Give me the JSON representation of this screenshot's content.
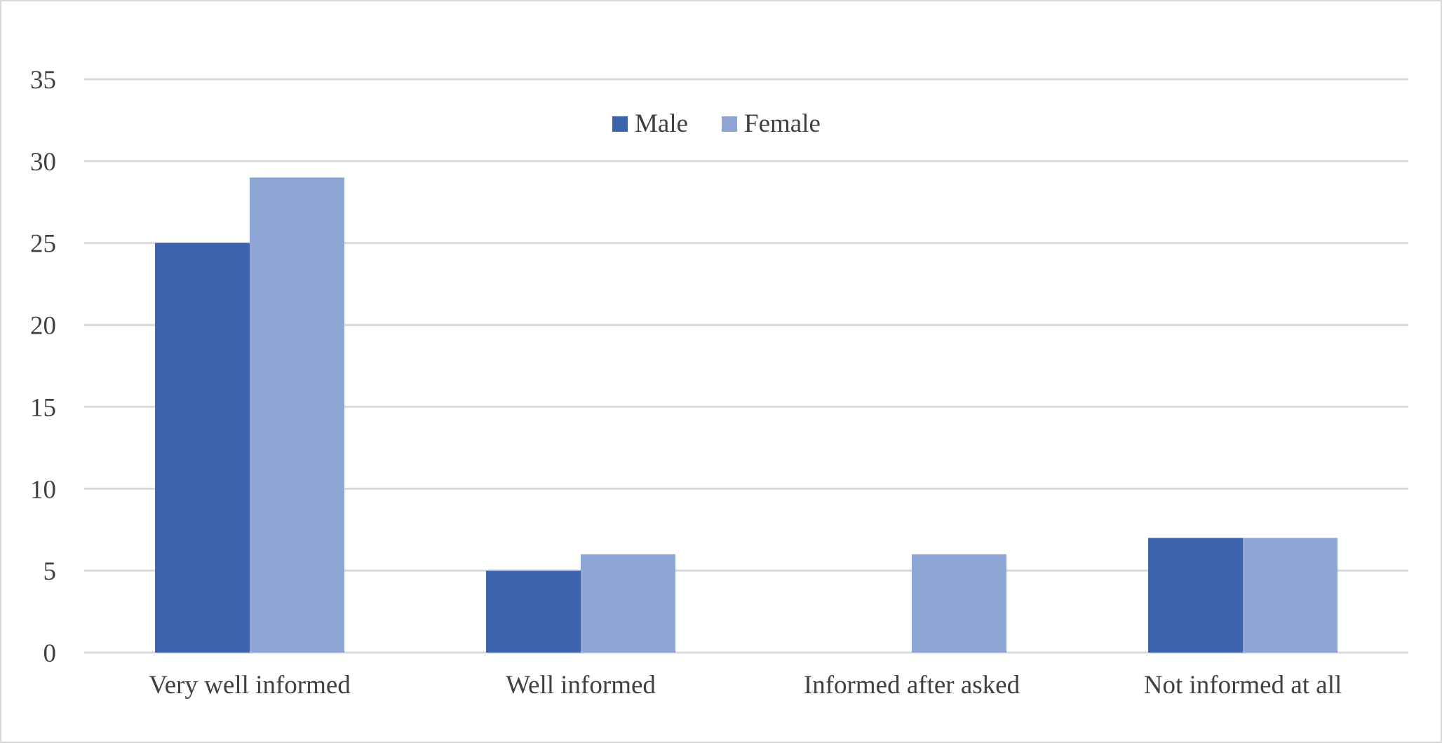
{
  "chart_data": {
    "type": "bar",
    "title": "",
    "xlabel": "",
    "ylabel": "",
    "categories": [
      "Very well informed",
      "Well informed",
      "Informed after asked",
      "Not informed at all"
    ],
    "series": [
      {
        "name": "Male",
        "values": [
          25,
          5,
          0,
          7
        ],
        "color": "#3c64ad"
      },
      {
        "name": "Female",
        "values": [
          29,
          6,
          6,
          7
        ],
        "color": "#8fa5d6"
      }
    ],
    "ylim": [
      0,
      35
    ],
    "yticks": [
      0,
      5,
      10,
      15,
      20,
      25,
      30,
      35
    ],
    "grid": true,
    "legend_position": "top-center"
  }
}
